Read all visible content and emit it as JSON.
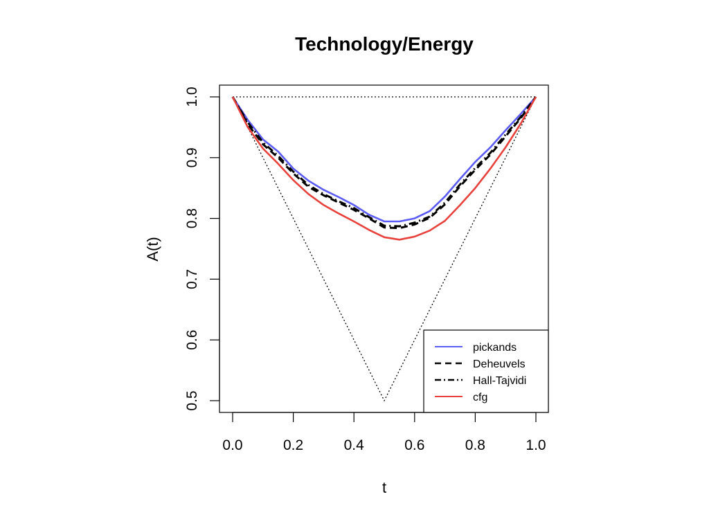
{
  "chart_data": {
    "type": "line",
    "title": "Technology/Energy",
    "xlabel": "t",
    "ylabel": "A(t)",
    "xlim": [
      0,
      1
    ],
    "ylim": [
      0.5,
      1.0
    ],
    "xticks": [
      "0.0",
      "0.2",
      "0.4",
      "0.6",
      "0.8",
      "1.0"
    ],
    "yticks": [
      "0.5",
      "0.6",
      "0.7",
      "0.8",
      "0.9",
      "1.0"
    ],
    "legend_position": "bottom-right",
    "grid": false,
    "bounds": {
      "upper": {
        "x": [
          0,
          1
        ],
        "y": [
          1.0,
          1.0
        ]
      },
      "lower": {
        "x": [
          0,
          0.5,
          1
        ],
        "y": [
          1.0,
          0.5,
          1.0
        ]
      }
    },
    "series": [
      {
        "name": "pickands",
        "color": "#5b5bf5",
        "style": "solid",
        "x": [
          0,
          0.05,
          0.1,
          0.15,
          0.2,
          0.25,
          0.3,
          0.35,
          0.4,
          0.45,
          0.5,
          0.55,
          0.6,
          0.65,
          0.7,
          0.75,
          0.8,
          0.85,
          0.9,
          0.95,
          1.0
        ],
        "y": [
          1.0,
          0.962,
          0.93,
          0.91,
          0.882,
          0.862,
          0.847,
          0.835,
          0.822,
          0.806,
          0.795,
          0.795,
          0.8,
          0.812,
          0.836,
          0.865,
          0.893,
          0.917,
          0.945,
          0.972,
          1.0
        ]
      },
      {
        "name": "Deheuvels",
        "color": "#000000",
        "style": "dashed",
        "x": [
          0,
          0.05,
          0.1,
          0.15,
          0.2,
          0.25,
          0.3,
          0.35,
          0.4,
          0.45,
          0.5,
          0.55,
          0.6,
          0.65,
          0.7,
          0.75,
          0.8,
          0.85,
          0.9,
          0.95,
          1.0
        ],
        "y": [
          1.0,
          0.955,
          0.922,
          0.9,
          0.874,
          0.852,
          0.838,
          0.826,
          0.814,
          0.8,
          0.785,
          0.784,
          0.79,
          0.801,
          0.823,
          0.853,
          0.88,
          0.905,
          0.935,
          0.965,
          1.0
        ]
      },
      {
        "name": "Hall-Tajvidi",
        "color": "#000000",
        "style": "dashdot",
        "x": [
          0,
          0.05,
          0.1,
          0.15,
          0.2,
          0.25,
          0.3,
          0.35,
          0.4,
          0.45,
          0.5,
          0.55,
          0.6,
          0.65,
          0.7,
          0.75,
          0.8,
          0.85,
          0.9,
          0.95,
          1.0
        ],
        "y": [
          1.0,
          0.958,
          0.925,
          0.903,
          0.877,
          0.855,
          0.84,
          0.828,
          0.817,
          0.802,
          0.788,
          0.787,
          0.793,
          0.803,
          0.826,
          0.856,
          0.883,
          0.908,
          0.938,
          0.967,
          1.0
        ]
      },
      {
        "name": "cfg",
        "color": "#e8413c",
        "style": "solid",
        "x": [
          0,
          0.05,
          0.1,
          0.15,
          0.2,
          0.25,
          0.3,
          0.35,
          0.4,
          0.45,
          0.5,
          0.55,
          0.6,
          0.65,
          0.7,
          0.75,
          0.8,
          0.85,
          0.9,
          0.95,
          1.0
        ],
        "y": [
          1.0,
          0.95,
          0.915,
          0.89,
          0.863,
          0.84,
          0.822,
          0.808,
          0.795,
          0.781,
          0.769,
          0.765,
          0.77,
          0.78,
          0.796,
          0.822,
          0.85,
          0.882,
          0.917,
          0.956,
          1.0
        ]
      }
    ]
  }
}
